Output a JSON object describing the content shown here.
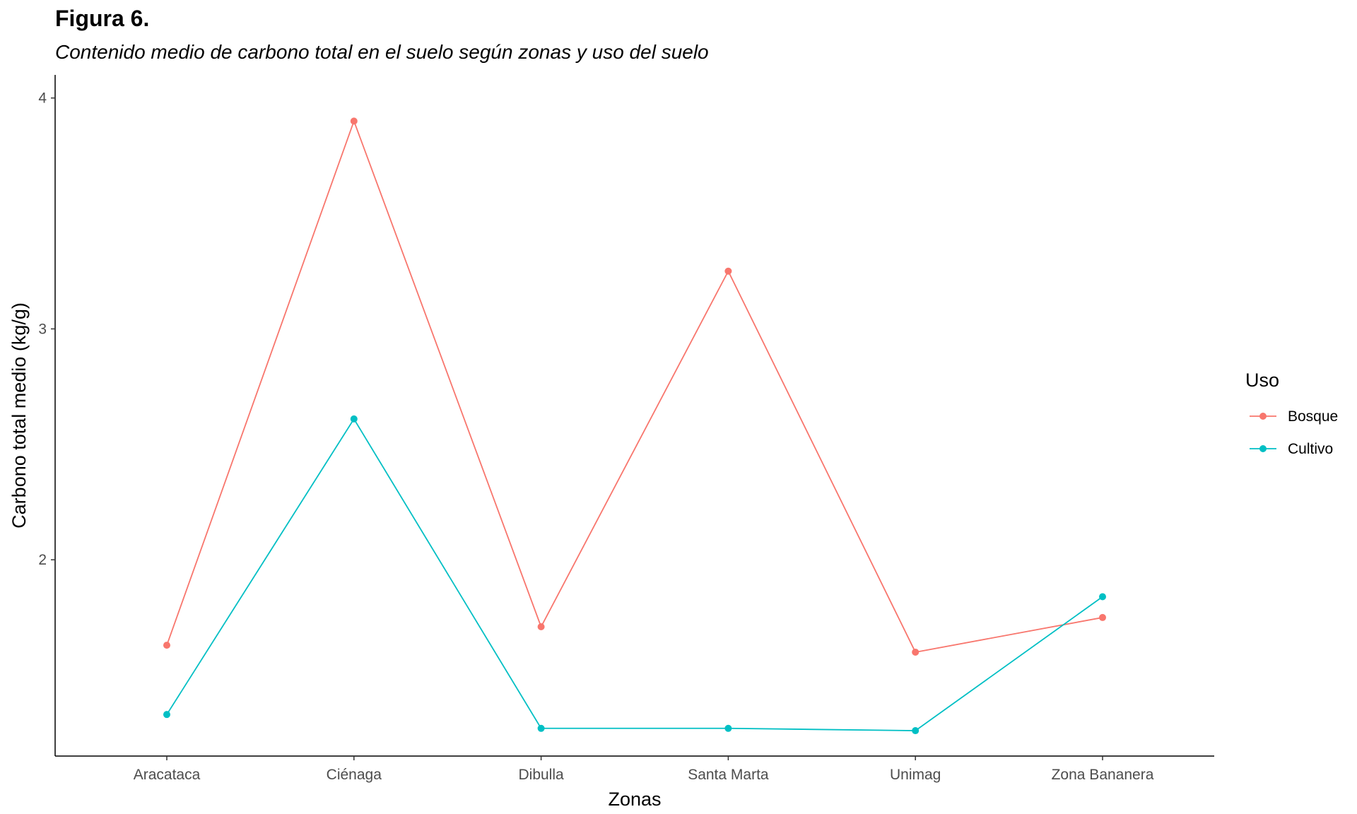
{
  "figure": {
    "title": "Figura 6.",
    "subtitle": "Contenido medio de carbono total en el suelo según zonas y uso del suelo"
  },
  "chart_data": {
    "type": "line",
    "title": "Figura 6.",
    "subtitle": "Contenido medio de carbono total en el suelo según zonas y uso del suelo",
    "xlabel": "Zonas",
    "ylabel": "Carbono total medio (kg/g)",
    "categories": [
      "Aracataca",
      "Ciénaga",
      "Dibulla",
      "Santa Marta",
      "Unimag",
      "Zona Bananera"
    ],
    "y_ticks": [
      "2",
      "3",
      "4"
    ],
    "ylim": [
      1.15,
      4.1
    ],
    "grid": false,
    "legend": {
      "title": "Uso",
      "position": "right"
    },
    "series": [
      {
        "name": "Bosque",
        "color": "#F8766D",
        "values": [
          1.63,
          3.9,
          1.71,
          3.25,
          1.6,
          1.75
        ]
      },
      {
        "name": "Cultivo",
        "color": "#00BFC4",
        "values": [
          1.33,
          2.61,
          1.27,
          1.27,
          1.26,
          1.84
        ]
      }
    ]
  }
}
